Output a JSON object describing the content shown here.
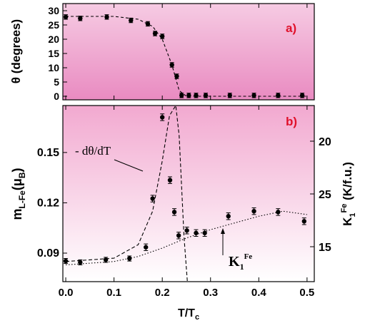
{
  "chart_data": [
    {
      "type": "scatter",
      "panel_label": "a)",
      "ylabel": "θ (degrees)",
      "xlim": [
        -0.006,
        0.515
      ],
      "ylim": [
        -1.25,
        32.5
      ],
      "xticks": [
        {
          "value": 0,
          "label": "0.0"
        },
        0.1,
        0.2,
        0.3,
        0.4,
        0.5
      ],
      "yticks": [
        0,
        5,
        10,
        15,
        20,
        25,
        30
      ],
      "series": [
        {
          "color": "#000000",
          "x": [
            0.0,
            0.03,
            0.085,
            0.135,
            0.17,
            0.185,
            0.2,
            0.22,
            0.23,
            0.24,
            0.255,
            0.27,
            0.29,
            0.34,
            0.39,
            0.44,
            0.49
          ],
          "values": [
            27.8,
            27.3,
            27.8,
            26.6,
            25.4,
            22,
            21,
            11,
            7,
            0.3,
            0.3,
            0.3,
            0.3,
            0.3,
            0.3,
            0.3,
            0.3
          ],
          "errors": [
            0.8,
            0.8,
            0.8,
            0.8,
            0.8,
            0.8,
            0.8,
            0.8,
            0.8,
            0.8,
            0.8,
            0.8,
            0.8,
            0.8,
            0.8,
            0.8,
            0.8
          ]
        }
      ],
      "curves": [
        {
          "dash": "4,3",
          "x": [
            0,
            0.1,
            0.15,
            0.18,
            0.2,
            0.22,
            0.235,
            0.25,
            0.5
          ],
          "values": [
            28,
            28,
            27,
            24.5,
            20,
            11,
            2,
            0,
            0
          ]
        }
      ]
    },
    {
      "type": "scatter",
      "panel_label": "b)",
      "ylabel": {
        "base": "m",
        "sub": "L-Fe",
        "rest": "(μ",
        "sub2": "B",
        "end": ")"
      },
      "xlabel": {
        "base": "T/T",
        "sub": "c"
      },
      "y2label": {
        "base": "K",
        "sub": "1",
        "sup": "Fe",
        "rest": " (K/f.u.)"
      },
      "y2_tick_labels": [
        "20",
        "25",
        "15"
      ],
      "xlim": [
        -0.006,
        0.515
      ],
      "ylim": [
        0.073,
        0.178
      ],
      "xticks": [
        {
          "value": 0,
          "label": "0.0"
        },
        0.1,
        0.2,
        0.3,
        0.4,
        0.5
      ],
      "yticks": [
        0.09,
        0.12,
        0.15
      ],
      "series": [
        {
          "color": "#000000",
          "x": [
            0.0,
            0.03,
            0.083,
            0.132,
            0.166,
            0.18,
            0.2,
            0.216,
            0.225,
            0.234,
            0.251,
            0.27,
            0.288,
            0.337,
            0.39,
            0.44,
            0.494
          ],
          "values": [
            0.0853,
            0.0845,
            0.086,
            0.0868,
            0.0935,
            0.1225,
            0.171,
            0.1335,
            0.1145,
            0.1005,
            0.1035,
            0.102,
            0.102,
            0.112,
            0.115,
            0.1145,
            0.109
          ],
          "errors": [
            0.0015,
            0.0015,
            0.0015,
            0.0015,
            0.002,
            0.002,
            0.002,
            0.002,
            0.002,
            0.002,
            0.002,
            0.002,
            0.002,
            0.002,
            0.002,
            0.002,
            0.002
          ]
        }
      ],
      "curves": [
        {
          "dash": "5,3",
          "x": [
            0,
            0.1,
            0.15,
            0.18,
            0.2,
            0.215,
            0.228,
            0.235,
            0.245,
            0.252
          ],
          "values": [
            0.085,
            0.087,
            0.095,
            0.115,
            0.145,
            0.172,
            0.178,
            0.16,
            0.1,
            0.073
          ]
        },
        {
          "dash": "1.5,2.5",
          "x": [
            0,
            0.1,
            0.15,
            0.2,
            0.25,
            0.3,
            0.35,
            0.4,
            0.45,
            0.5
          ],
          "values": [
            0.083,
            0.085,
            0.088,
            0.093,
            0.099,
            0.104,
            0.108,
            0.112,
            0.115,
            0.113
          ]
        }
      ],
      "annotations": {
        "deriv": "- dθ/dT",
        "k_base": "K",
        "k_sub": "1",
        "k_sup": "Fe"
      }
    }
  ]
}
